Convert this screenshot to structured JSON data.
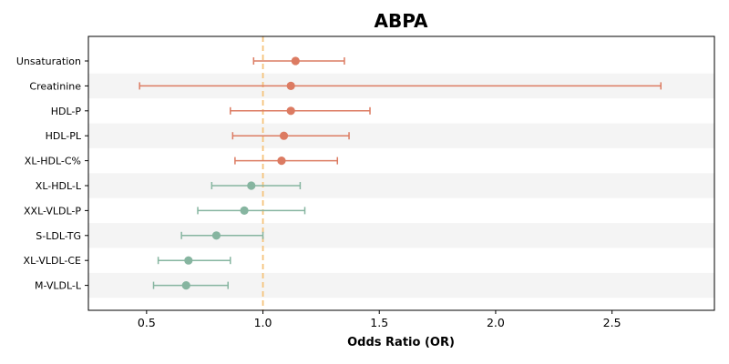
{
  "chart_data": {
    "type": "forest",
    "title": "ABPA",
    "xlabel": "Odds Ratio (OR)",
    "xlim": [
      0.25,
      2.94
    ],
    "xticks": [
      0.5,
      1.0,
      1.5,
      2.0,
      2.5
    ],
    "xtick_labels": [
      "0.5",
      "1.0",
      "1.5",
      "2.0",
      "2.5"
    ],
    "reference_line": 1.0,
    "reference_color": "#f5c27a",
    "positive_color": "#dc7b62",
    "negative_color": "#86b5a0",
    "band_color": "#f4f4f4",
    "rows": [
      {
        "label": "Unsaturation",
        "or": 1.14,
        "lower": 0.96,
        "upper": 1.35
      },
      {
        "label": "Creatinine",
        "or": 1.12,
        "lower": 0.47,
        "upper": 2.71
      },
      {
        "label": "HDL-P",
        "or": 1.12,
        "lower": 0.86,
        "upper": 1.46
      },
      {
        "label": "HDL-PL",
        "or": 1.09,
        "lower": 0.87,
        "upper": 1.37
      },
      {
        "label": "XL-HDL-C%",
        "or": 1.08,
        "lower": 0.88,
        "upper": 1.32
      },
      {
        "label": "XL-HDL-L",
        "or": 0.95,
        "lower": 0.78,
        "upper": 1.16
      },
      {
        "label": "XXL-VLDL-P",
        "or": 0.92,
        "lower": 0.72,
        "upper": 1.18
      },
      {
        "label": "S-LDL-TG",
        "or": 0.8,
        "lower": 0.65,
        "upper": 1.0
      },
      {
        "label": "XL-VLDL-CE",
        "or": 0.68,
        "lower": 0.55,
        "upper": 0.86
      },
      {
        "label": "M-VLDL-L",
        "or": 0.67,
        "lower": 0.53,
        "upper": 0.85
      }
    ]
  }
}
